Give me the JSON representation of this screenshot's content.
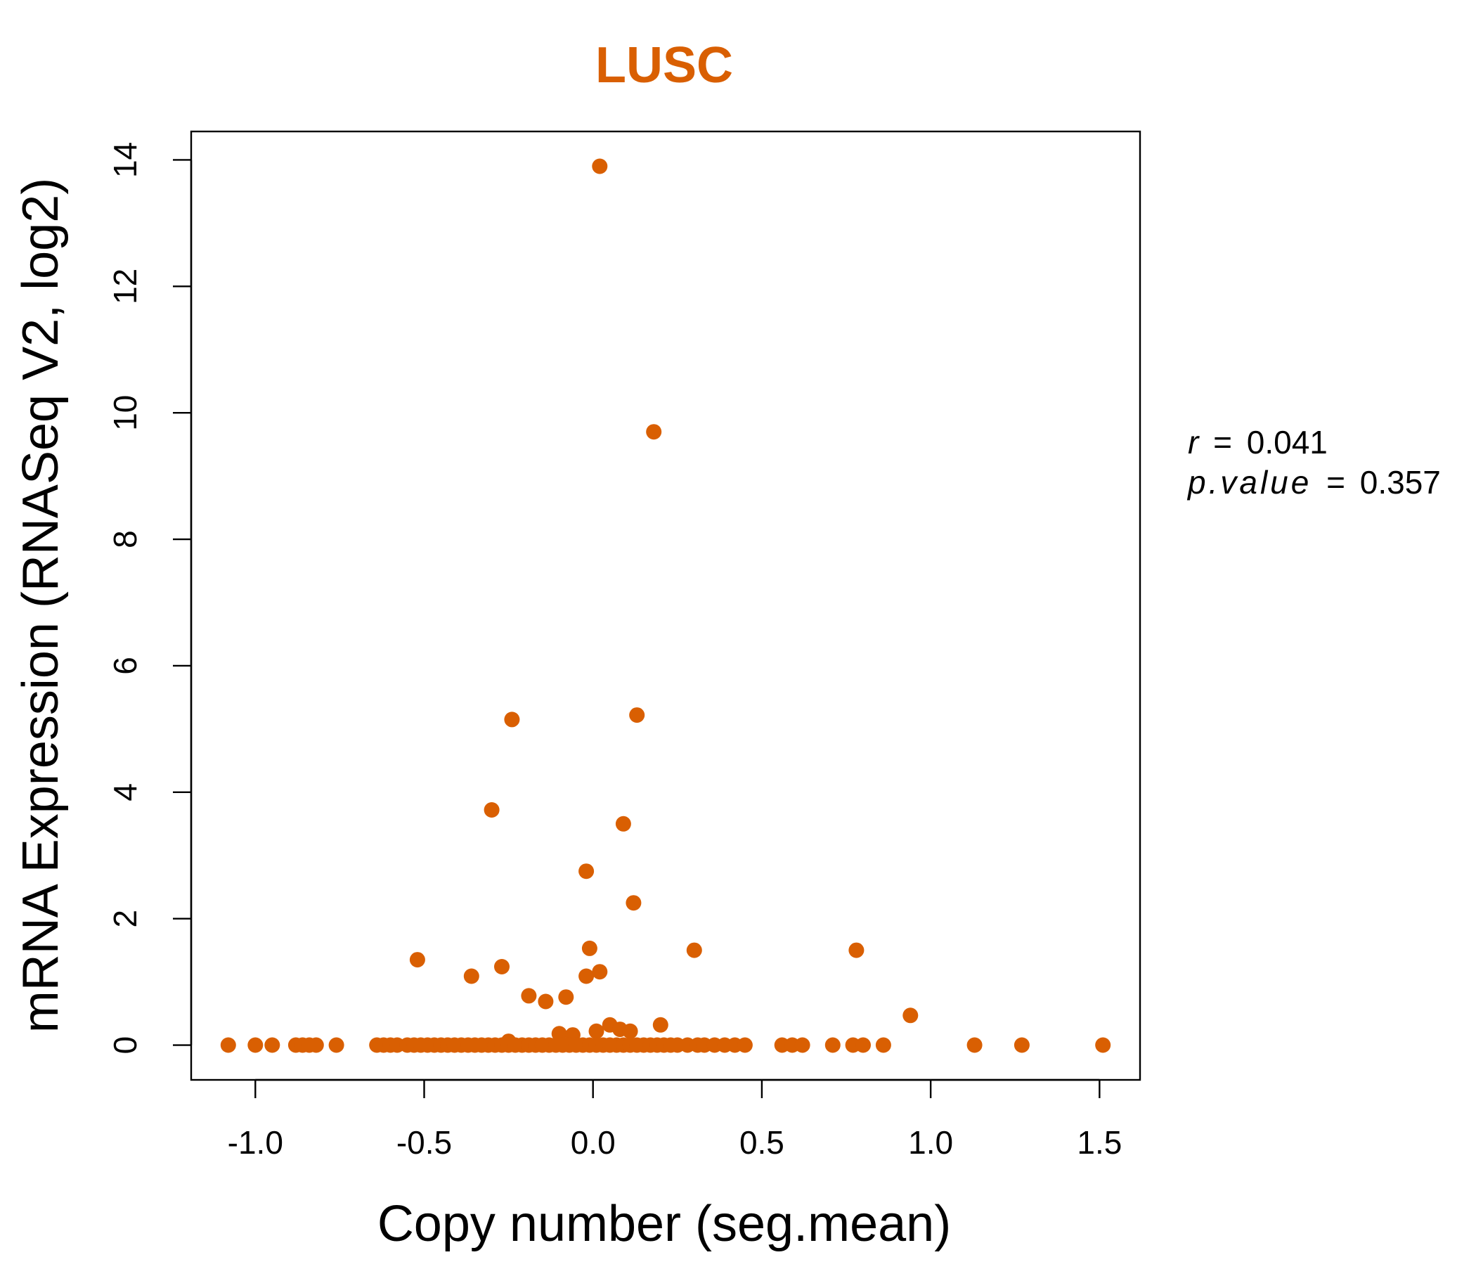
{
  "chart_data": {
    "type": "scatter",
    "title": "LUSC",
    "xlabel": "Copy number (seg.mean)",
    "ylabel": "mRNA Expression (RNASeq V2, log2)",
    "xlim": [
      -1.19,
      1.62
    ],
    "ylim": [
      -0.55,
      14.45
    ],
    "x_ticks": [
      -1.0,
      -0.5,
      0.0,
      0.5,
      1.0,
      1.5
    ],
    "x_tick_labels": [
      "-1.0",
      "-0.5",
      "0.0",
      "0.5",
      "1.0",
      "1.5"
    ],
    "y_ticks": [
      0,
      2,
      4,
      6,
      8,
      10,
      12,
      14
    ],
    "y_tick_labels": [
      "0",
      "2",
      "4",
      "6",
      "8",
      "10",
      "12",
      "14"
    ],
    "grid": false,
    "legend": "none",
    "color": "#d95f02",
    "annotation": {
      "r_label": "r",
      "r_value": "0.041",
      "p_label": "p.value",
      "p_value": "0.357",
      "equals": "="
    },
    "series": [
      {
        "points": [
          [
            0.02,
            13.9
          ],
          [
            0.18,
            9.7
          ],
          [
            -0.24,
            5.15
          ],
          [
            0.13,
            5.22
          ],
          [
            -0.3,
            3.72
          ],
          [
            0.09,
            3.5
          ],
          [
            -0.02,
            2.75
          ],
          [
            0.12,
            2.25
          ],
          [
            -0.01,
            1.53
          ],
          [
            0.3,
            1.5
          ],
          [
            0.78,
            1.5
          ],
          [
            -0.52,
            1.35
          ],
          [
            -0.36,
            1.09
          ],
          [
            -0.27,
            1.24
          ],
          [
            -0.02,
            1.09
          ],
          [
            0.02,
            1.16
          ],
          [
            -0.19,
            0.78
          ],
          [
            -0.14,
            0.69
          ],
          [
            -0.08,
            0.76
          ],
          [
            0.94,
            0.47
          ],
          [
            0.05,
            0.32
          ],
          [
            0.08,
            0.25
          ],
          [
            0.11,
            0.22
          ],
          [
            0.2,
            0.32
          ],
          [
            -0.1,
            0.18
          ],
          [
            -0.06,
            0.16
          ],
          [
            0.01,
            0.22
          ],
          [
            -0.25,
            0.06
          ],
          [
            -1.08,
            0
          ],
          [
            -1.0,
            0
          ],
          [
            -0.95,
            0
          ],
          [
            -0.88,
            0
          ],
          [
            -0.86,
            0
          ],
          [
            -0.84,
            0
          ],
          [
            -0.82,
            0
          ],
          [
            -0.76,
            0
          ],
          [
            -0.64,
            0
          ],
          [
            -0.62,
            0
          ],
          [
            -0.6,
            0
          ],
          [
            -0.58,
            0
          ],
          [
            -0.55,
            0
          ],
          [
            -0.53,
            0
          ],
          [
            -0.51,
            0
          ],
          [
            -0.49,
            0
          ],
          [
            -0.47,
            0
          ],
          [
            -0.45,
            0
          ],
          [
            -0.43,
            0
          ],
          [
            -0.41,
            0
          ],
          [
            -0.39,
            0
          ],
          [
            -0.37,
            0
          ],
          [
            -0.35,
            0
          ],
          [
            -0.33,
            0
          ],
          [
            -0.31,
            0
          ],
          [
            -0.29,
            0
          ],
          [
            -0.27,
            0
          ],
          [
            -0.25,
            0
          ],
          [
            -0.23,
            0
          ],
          [
            -0.21,
            0
          ],
          [
            -0.19,
            0
          ],
          [
            -0.17,
            0
          ],
          [
            -0.15,
            0
          ],
          [
            -0.13,
            0
          ],
          [
            -0.11,
            0
          ],
          [
            -0.09,
            0
          ],
          [
            -0.07,
            0
          ],
          [
            -0.05,
            0
          ],
          [
            -0.03,
            0
          ],
          [
            -0.01,
            0
          ],
          [
            0.01,
            0
          ],
          [
            0.03,
            0
          ],
          [
            0.05,
            0
          ],
          [
            0.07,
            0
          ],
          [
            0.09,
            0
          ],
          [
            0.11,
            0
          ],
          [
            0.13,
            0
          ],
          [
            0.15,
            0
          ],
          [
            0.17,
            0
          ],
          [
            0.19,
            0
          ],
          [
            0.21,
            0
          ],
          [
            0.23,
            0
          ],
          [
            0.25,
            0
          ],
          [
            0.28,
            0
          ],
          [
            0.31,
            0
          ],
          [
            0.33,
            0
          ],
          [
            0.36,
            0
          ],
          [
            0.39,
            0
          ],
          [
            0.42,
            0
          ],
          [
            0.45,
            0
          ],
          [
            0.56,
            0
          ],
          [
            0.59,
            0
          ],
          [
            0.62,
            0
          ],
          [
            0.71,
            0
          ],
          [
            0.77,
            0
          ],
          [
            0.8,
            0
          ],
          [
            0.86,
            0
          ],
          [
            1.13,
            0
          ],
          [
            1.27,
            0
          ],
          [
            1.51,
            0
          ]
        ]
      }
    ]
  }
}
